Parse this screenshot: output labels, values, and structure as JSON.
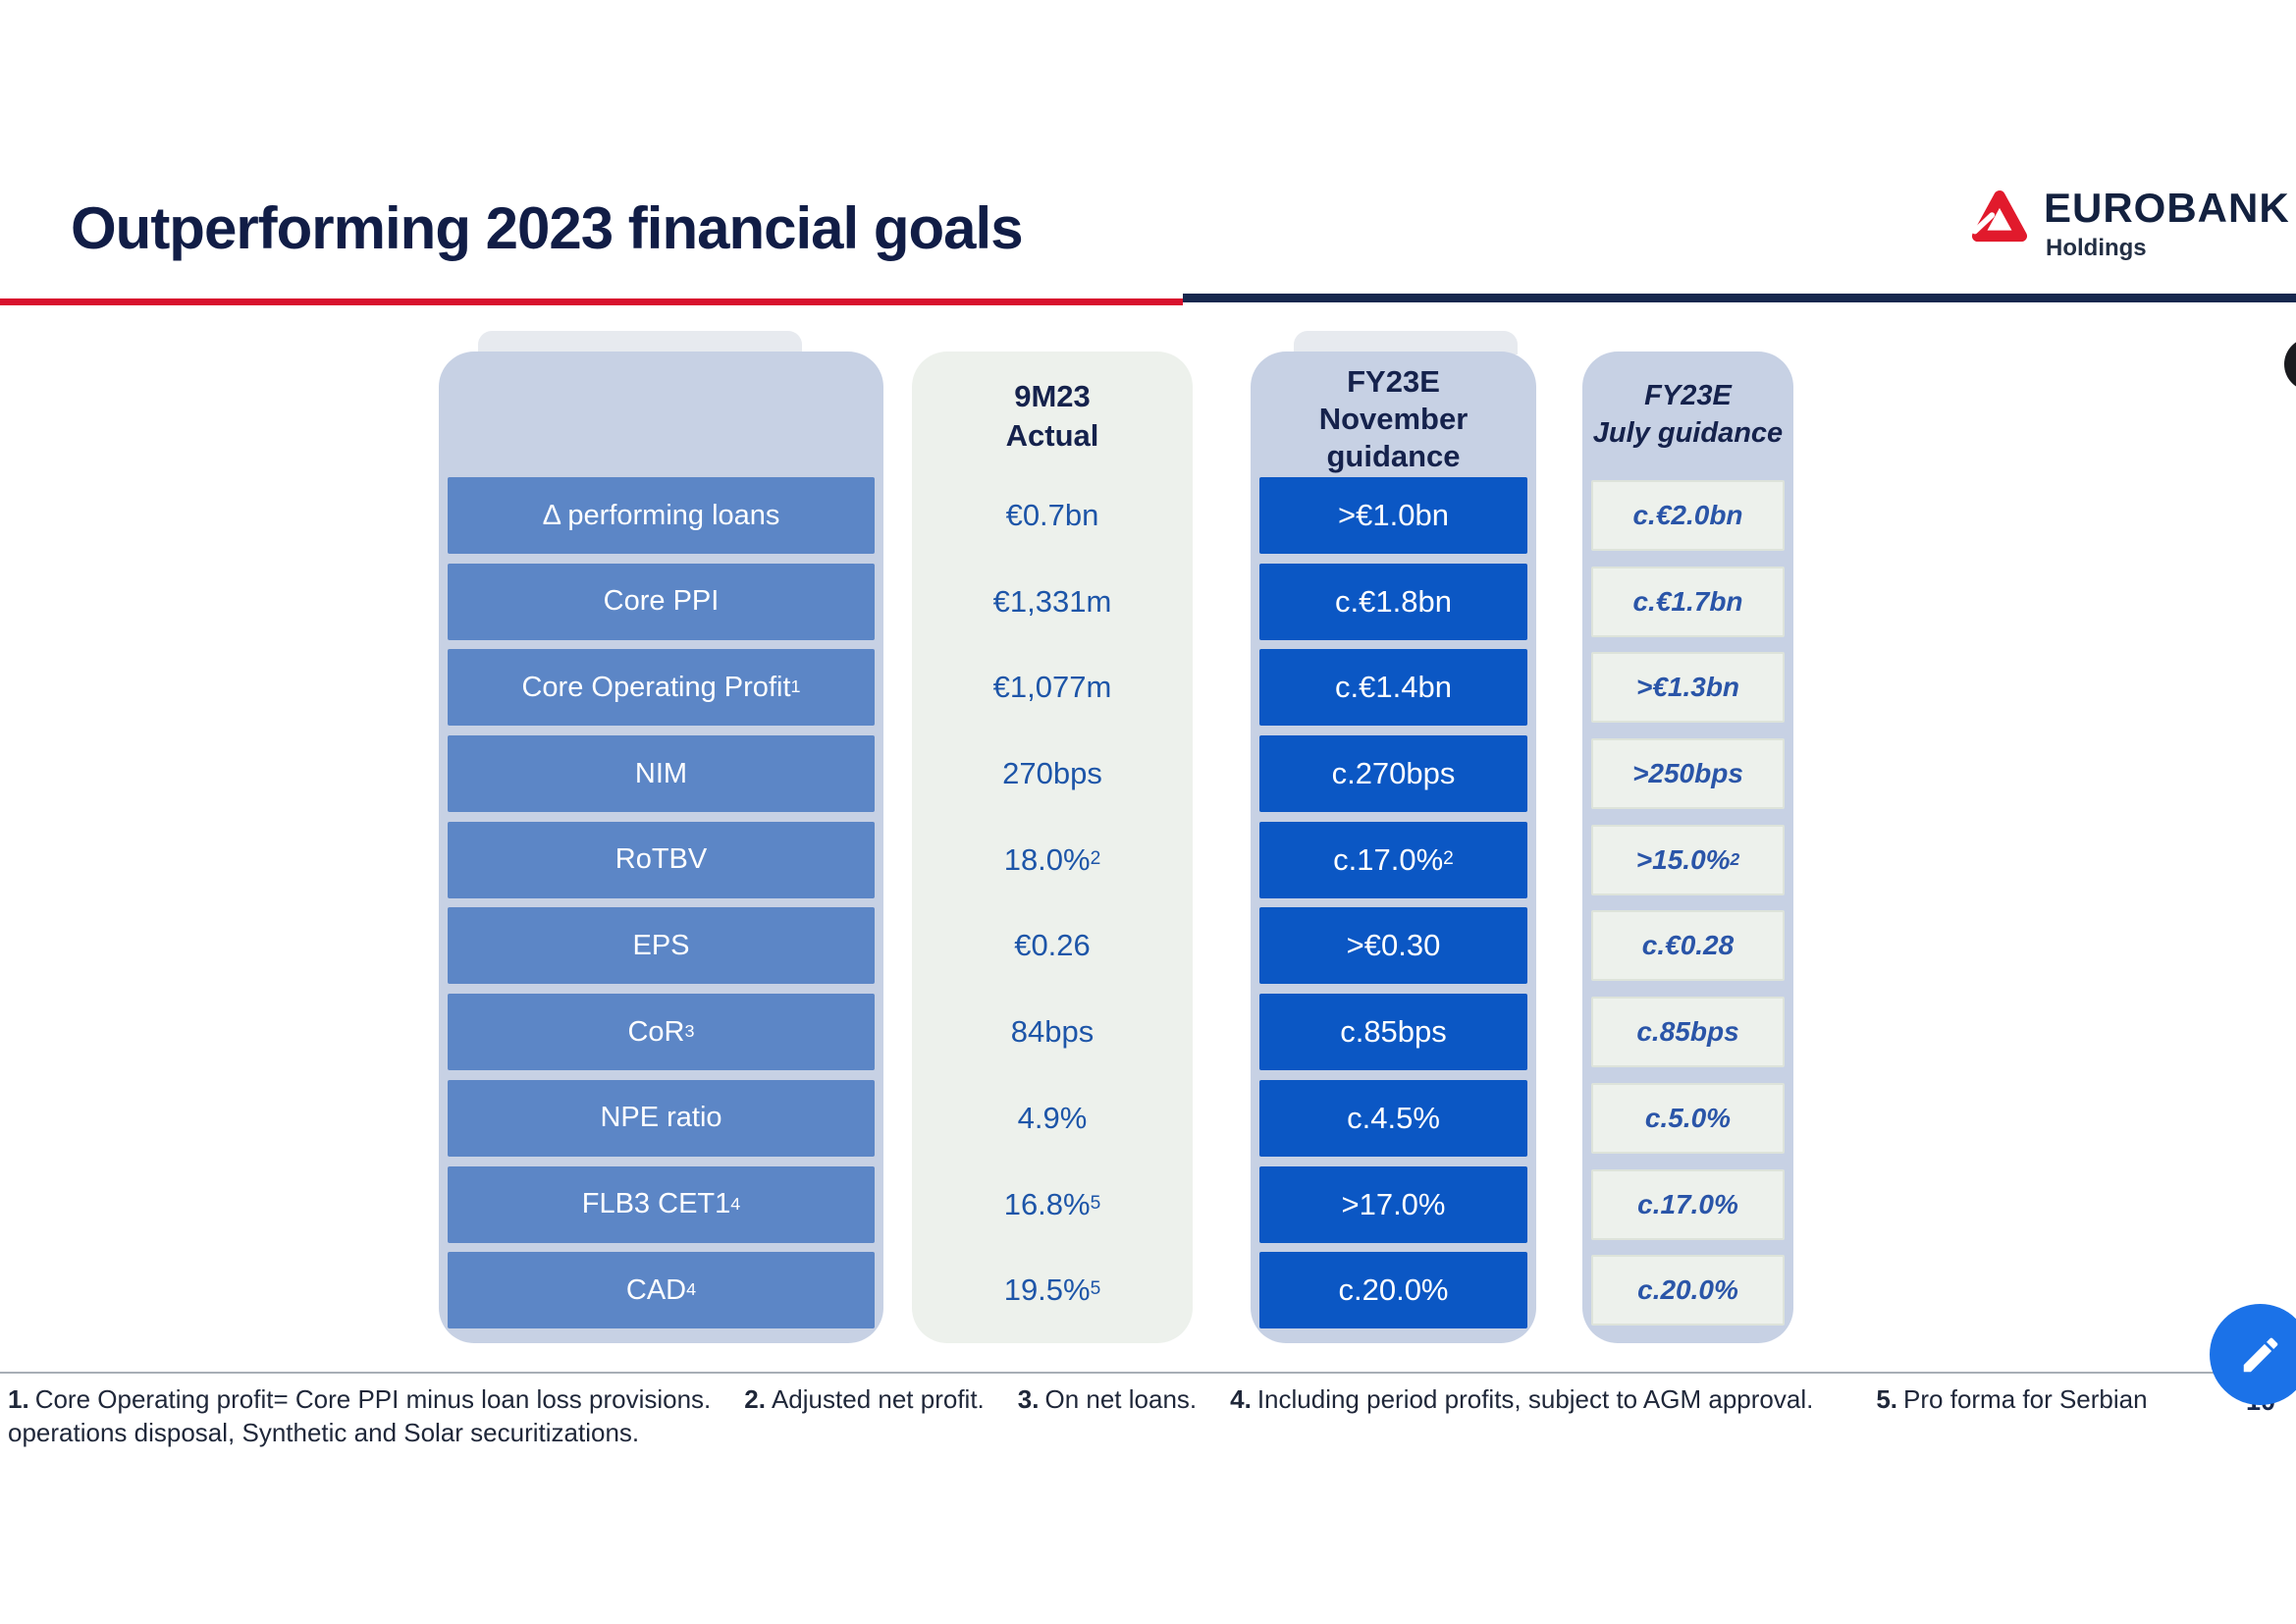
{
  "slide": {
    "title": "Outperforming 2023 financial goals",
    "page_number": "10"
  },
  "logo": {
    "brand": "EUROBANK",
    "subtitle": "Holdings"
  },
  "colors": {
    "accent_red": "#d8112e",
    "title_navy": "#111d46",
    "label_box_blue": "#5c86c6",
    "guidance_box_blue": "#0b57c4",
    "column_panel_blue": "#c7d1e4",
    "column_panel_light": "#edf1ec",
    "fab_blue": "#1b72e8"
  },
  "table": {
    "column_headers": {
      "actual": [
        "9M23",
        "Actual"
      ],
      "nov": [
        "FY23E",
        "November",
        "guidance"
      ],
      "july": [
        "FY23E",
        "July guidance"
      ]
    },
    "rows": [
      {
        "label": {
          "text": "Δ performing loans",
          "sup": ""
        },
        "actual": {
          "text": "€0.7bn",
          "sup": ""
        },
        "nov": {
          "text": ">€1.0bn",
          "sup": ""
        },
        "july": {
          "text": "c.€2.0bn",
          "sup": ""
        }
      },
      {
        "label": {
          "text": "Core PPI",
          "sup": ""
        },
        "actual": {
          "text": "€1,331m",
          "sup": ""
        },
        "nov": {
          "text": "c.€1.8bn",
          "sup": ""
        },
        "july": {
          "text": "c.€1.7bn",
          "sup": ""
        }
      },
      {
        "label": {
          "text": "Core Operating Profit",
          "sup": "1"
        },
        "actual": {
          "text": "€1,077m",
          "sup": ""
        },
        "nov": {
          "text": "c.€1.4bn",
          "sup": ""
        },
        "july": {
          "text": ">€1.3bn",
          "sup": ""
        }
      },
      {
        "label": {
          "text": "NIM",
          "sup": ""
        },
        "actual": {
          "text": "270bps",
          "sup": ""
        },
        "nov": {
          "text": "c.270bps",
          "sup": ""
        },
        "july": {
          "text": ">250bps",
          "sup": ""
        }
      },
      {
        "label": {
          "text": "RoTBV",
          "sup": ""
        },
        "actual": {
          "text": "18.0%",
          "sup": "2"
        },
        "nov": {
          "text": "c.17.0%",
          "sup": "2"
        },
        "july": {
          "text": ">15.0%",
          "sup": "2"
        }
      },
      {
        "label": {
          "text": "EPS",
          "sup": ""
        },
        "actual": {
          "text": "€0.26",
          "sup": ""
        },
        "nov": {
          "text": ">€0.30",
          "sup": ""
        },
        "july": {
          "text": "c.€0.28",
          "sup": ""
        }
      },
      {
        "label": {
          "text": "CoR",
          "sup": "3"
        },
        "actual": {
          "text": "84bps",
          "sup": ""
        },
        "nov": {
          "text": "c.85bps",
          "sup": ""
        },
        "july": {
          "text": "c.85bps",
          "sup": ""
        }
      },
      {
        "label": {
          "text": "NPE ratio",
          "sup": ""
        },
        "actual": {
          "text": "4.9%",
          "sup": ""
        },
        "nov": {
          "text": "c.4.5%",
          "sup": ""
        },
        "july": {
          "text": "c.5.0%",
          "sup": ""
        }
      },
      {
        "label": {
          "text": "FLB3 CET1",
          "sup": "4"
        },
        "actual": {
          "text": "16.8%",
          "sup": "5"
        },
        "nov": {
          "text": ">17.0%",
          "sup": ""
        },
        "july": {
          "text": "c.17.0%",
          "sup": ""
        }
      },
      {
        "label": {
          "text": "CAD",
          "sup": "4"
        },
        "actual": {
          "text": "19.5%",
          "sup": "5"
        },
        "nov": {
          "text": "c.20.0%",
          "sup": ""
        },
        "july": {
          "text": "c.20.0%",
          "sup": ""
        }
      }
    ]
  },
  "footnotes": {
    "items": [
      {
        "num": "1.",
        "text": "Core Operating profit= Core PPI minus loan loss provisions."
      },
      {
        "num": "2.",
        "text": "Adjusted net profit."
      },
      {
        "num": "3.",
        "text": "On net loans."
      },
      {
        "num": "4.",
        "text": "Including period profits, subject to AGM approval."
      },
      {
        "num": "5.",
        "text": "Pro forma for Serbian"
      }
    ],
    "continuation": "operations disposal, Synthetic and Solar securitizations."
  }
}
